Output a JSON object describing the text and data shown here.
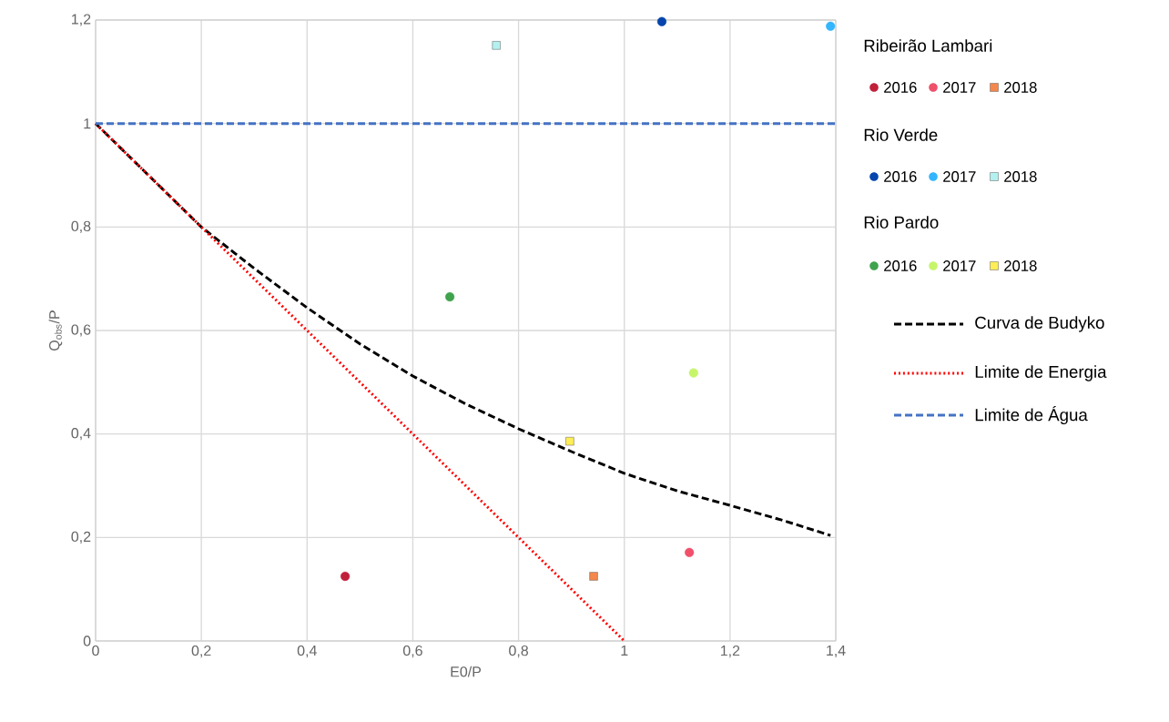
{
  "chart_data": {
    "type": "scatter",
    "xlabel": "E0/P",
    "ylabel": "Q$_{obs}$/P",
    "xlim": [
      0,
      1.4
    ],
    "ylim": [
      0,
      1.2
    ],
    "xticks": [
      0,
      {
        "value": 0.2,
        "label": "0,2"
      },
      {
        "value": 0.4,
        "label": "0,4"
      },
      {
        "value": 0.6,
        "label": "0,6"
      },
      {
        "value": 0.8,
        "label": "0,8"
      },
      1,
      {
        "value": 1.2,
        "label": "1,2"
      },
      {
        "value": 1.4,
        "label": "1,4"
      }
    ],
    "yticks": [
      0,
      {
        "value": 0.2,
        "label": "0,2"
      },
      {
        "value": 0.4,
        "label": "0,4"
      },
      {
        "value": 0.6,
        "label": "0,6"
      },
      {
        "value": 0.8,
        "label": "0,8"
      },
      1,
      {
        "value": 1.2,
        "label": "1,2"
      }
    ],
    "grid": true,
    "legend": "right",
    "annotations": [
      "Ribeirão Lambari",
      "Rio Verde",
      "Rio Pardo"
    ],
    "series": [
      {
        "name": "2016",
        "marker": "circle",
        "color": "#c0203a",
        "x": [
          0.472
        ],
        "values": [
          0.125
        ]
      },
      {
        "name": "2017",
        "marker": "circle",
        "color": "#f0506a",
        "x": [
          1.123
        ],
        "values": [
          0.171
        ]
      },
      {
        "name": "2018",
        "marker": "square",
        "color": "#f4874b",
        "x": [
          0.942
        ],
        "values": [
          0.125
        ]
      },
      {
        "name": "2016",
        "marker": "circle",
        "color": "#0645ad",
        "x": [
          1.071
        ],
        "values": [
          1.197
        ]
      },
      {
        "name": "2017",
        "marker": "circle",
        "color": "#33b5ff",
        "x": [
          1.39
        ],
        "values": [
          1.188
        ]
      },
      {
        "name": "2018",
        "marker": "square",
        "color": "#b4f0f0",
        "x": [
          0.758
        ],
        "values": [
          1.151
        ]
      },
      {
        "name": "2016",
        "marker": "circle",
        "color": "#3fa34d",
        "x": [
          0.67
        ],
        "values": [
          0.665
        ]
      },
      {
        "name": "2017",
        "marker": "circle",
        "color": "#c6f56a",
        "x": [
          1.131
        ],
        "values": [
          0.518
        ]
      },
      {
        "name": "2018",
        "marker": "square",
        "color": "#ffee55",
        "x": [
          0.897
        ],
        "values": [
          0.386
        ]
      },
      {
        "name": "Curva de Budyko",
        "type": "line",
        "marker": "none",
        "line_style": "dashed",
        "color": "#000000",
        "x": [
          0,
          0.1,
          0.2,
          0.3,
          0.4,
          0.5,
          0.6,
          0.7,
          0.8,
          0.9,
          1,
          1.1,
          1.2,
          1.3,
          1.39
        ],
        "values": [
          1,
          0.9,
          0.8,
          0.72,
          0.644,
          0.574,
          0.512,
          0.458,
          0.41,
          0.366,
          0.324,
          0.29,
          0.262,
          0.233,
          0.204
        ]
      },
      {
        "name": "Limite de Energia",
        "type": "line",
        "marker": "none",
        "line_style": "dotted",
        "color": "#ff0000",
        "x": [
          0,
          1
        ],
        "values": [
          1,
          0
        ]
      },
      {
        "name": "Limite de Água",
        "type": "line",
        "marker": "none",
        "line_style": "dashed",
        "color": "#4472c4",
        "x": [
          0,
          1.4
        ],
        "values": [
          1,
          1
        ]
      }
    ]
  }
}
